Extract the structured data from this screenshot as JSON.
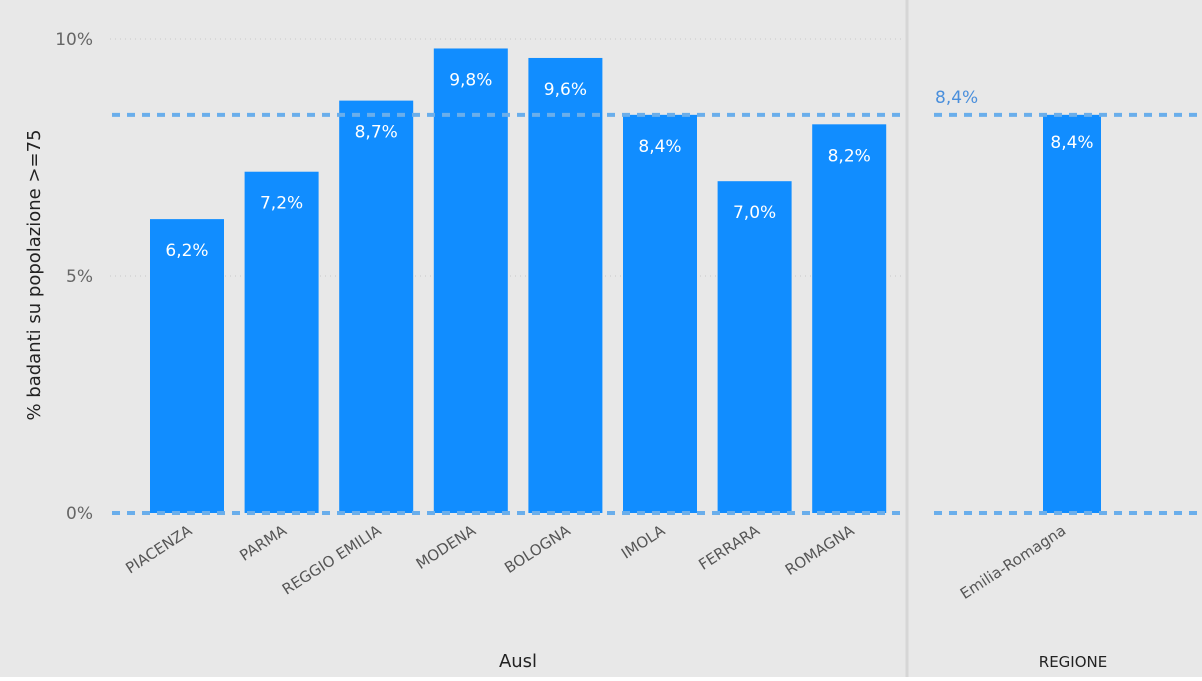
{
  "colors": {
    "bar": "#118DFF",
    "background": "#E8E8E8",
    "ref_line": "#6AAEEB",
    "gridline": "#C8C8C8",
    "divider": "#D6D6D6",
    "ref_label": "#4A8FDC"
  },
  "chart_data": [
    {
      "type": "bar",
      "title": "",
      "xlabel": "Ausl",
      "ylabel": "% badanti su popolazione >=75",
      "categories": [
        "PIACENZA",
        "PARMA",
        "REGGIO EMILIA",
        "MODENA",
        "BOLOGNA",
        "IMOLA",
        "FERRARA",
        "ROMAGNA"
      ],
      "values": [
        6.2,
        7.2,
        8.7,
        9.8,
        9.6,
        8.4,
        7.0,
        8.2
      ],
      "data_labels": [
        "6,2%",
        "7,2%",
        "8,7%",
        "9,8%",
        "9,6%",
        "8,4%",
        "7,0%",
        "8,2%"
      ],
      "ylim": [
        0,
        10
      ],
      "yticks": [
        0,
        5,
        10
      ],
      "ytick_labels": [
        "0%",
        "5%",
        "10%"
      ],
      "grid": true,
      "reference_lines": [
        {
          "value": 8.4
        },
        {
          "value": 0
        }
      ]
    },
    {
      "type": "bar",
      "title": "",
      "xlabel": "REGIONE",
      "categories": [
        "Emilia-Romagna"
      ],
      "values": [
        8.4
      ],
      "data_labels": [
        "8,4%"
      ],
      "ylim": [
        0,
        10
      ],
      "reference_lines": [
        {
          "value": 8.4,
          "label": "8,4%"
        },
        {
          "value": 0
        }
      ]
    }
  ]
}
